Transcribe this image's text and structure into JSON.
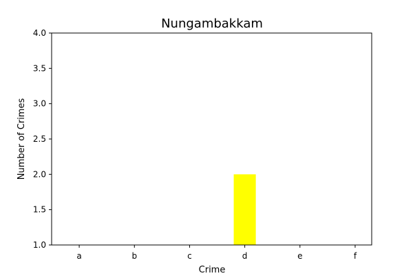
{
  "chart_data": {
    "type": "bar",
    "title": "Nungambakkam",
    "xlabel": "Crime",
    "ylabel": "Number of Crimes",
    "categories": [
      "a",
      "b",
      "c",
      "d",
      "e",
      "f"
    ],
    "values": [
      1,
      1,
      1,
      2,
      1,
      1
    ],
    "ylim": [
      1.0,
      4.0
    ],
    "yticks": [
      "1.0",
      "1.5",
      "2.0",
      "2.5",
      "3.0",
      "3.5",
      "4.0"
    ],
    "grid": false,
    "bar_color": "#ffff00"
  }
}
